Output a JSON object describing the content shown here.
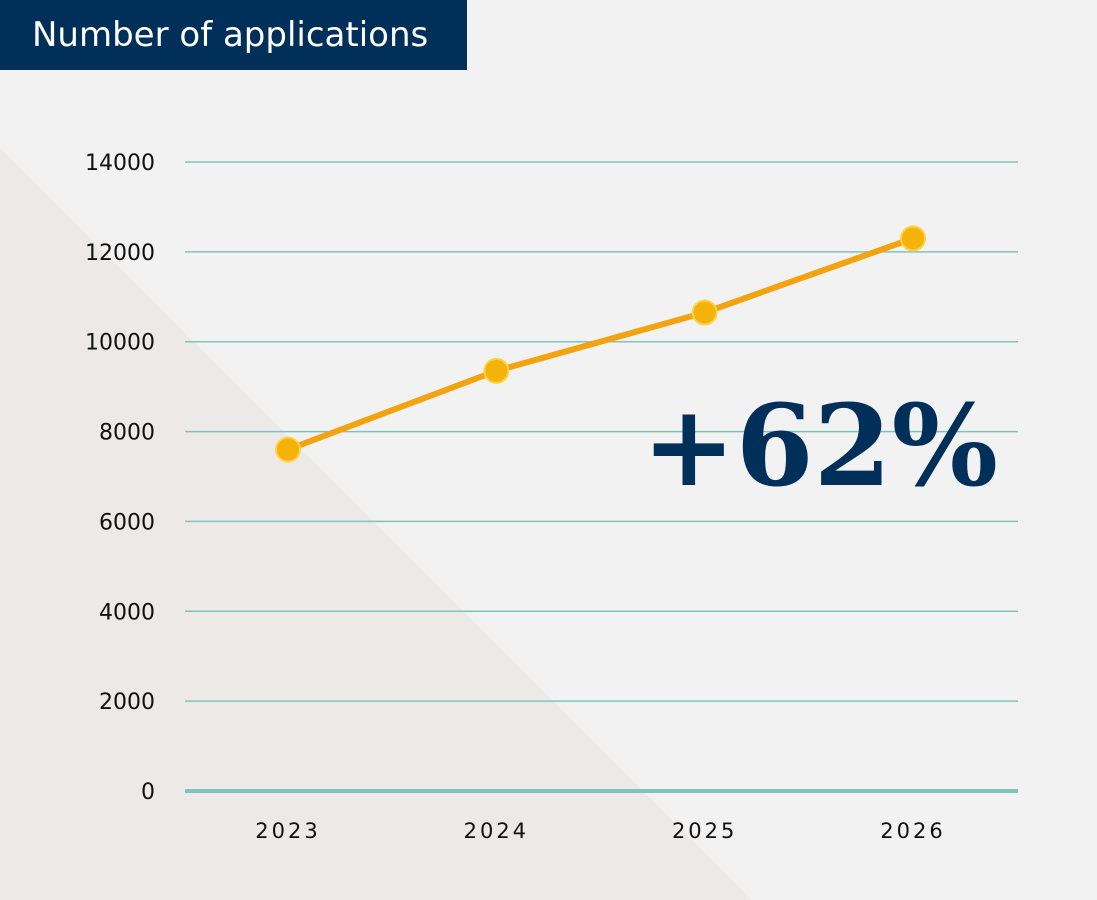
{
  "header": {
    "title": "Number of applications"
  },
  "callout": {
    "text": "+62%"
  },
  "colors": {
    "title_bg": "#00305a",
    "line": "#f2a30f",
    "marker": "#f5b30a",
    "gridline": "#7fc4b8",
    "callout": "#00305a",
    "background": "#f2f2f2",
    "background_shape": "#ece9e8"
  },
  "chart_data": {
    "type": "line",
    "title": "Number of applications",
    "xlabel": "",
    "ylabel": "",
    "categories": [
      "2023",
      "2024",
      "2025",
      "2026"
    ],
    "series": [
      {
        "values": [
          7600,
          9350,
          10650,
          12300
        ]
      }
    ],
    "ylim": [
      0,
      14000
    ],
    "yticks": [
      "0",
      "2000",
      "4000",
      "6000",
      "8000",
      "10000",
      "12000",
      "14000"
    ],
    "grid": true,
    "legend": "none",
    "annotations": [
      "+62%"
    ]
  }
}
